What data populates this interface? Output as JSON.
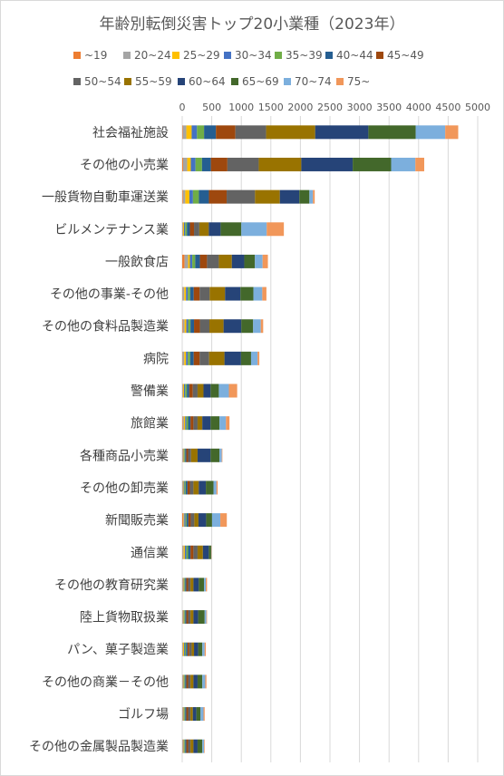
{
  "chart_data": {
    "type": "bar",
    "orientation": "horizontal",
    "stacked": true,
    "title": "年齢別転倒災害トップ20小業種（2023年）",
    "xlabel": "",
    "ylabel": "",
    "xlim": [
      0,
      5000
    ],
    "xticks": [
      "0",
      "500",
      "1000",
      "1500",
      "2000",
      "2500",
      "3000",
      "3500",
      "4000",
      "4500",
      "5000"
    ],
    "grid": true,
    "legend_position": "top",
    "categories": [
      "社会福祉施設",
      "その他の小売業",
      "一般貨物自動車運送業",
      "ビルメンテナンス業",
      "一般飲食店",
      "その他の事業-その他",
      "その他の食料品製造業",
      "病院",
      "警備業",
      "旅館業",
      "各種商品小売業",
      "その他の卸売業",
      "新聞販売業",
      "通信業",
      "その他の教育研究業",
      "陸上貨物取扱業",
      "パン、菓子製造業",
      "その他の商業－その他",
      "ゴルフ場",
      "その他の金属製品製造業"
    ],
    "series": [
      {
        "name": "~19",
        "color": "#ED7D31",
        "values": [
          10,
          15,
          12,
          5,
          40,
          5,
          10,
          5,
          5,
          10,
          5,
          5,
          15,
          5,
          5,
          5,
          5,
          5,
          5,
          5
        ]
      },
      {
        "name": "20~24",
        "color": "#A5A5A5",
        "values": [
          60,
          70,
          40,
          10,
          60,
          30,
          30,
          30,
          10,
          20,
          10,
          10,
          10,
          20,
          10,
          10,
          10,
          10,
          10,
          10
        ]
      },
      {
        "name": "25~29",
        "color": "#FFC000",
        "values": [
          90,
          60,
          70,
          15,
          30,
          30,
          30,
          30,
          15,
          20,
          10,
          10,
          10,
          20,
          10,
          10,
          15,
          10,
          10,
          10
        ]
      },
      {
        "name": "30~34",
        "color": "#4472C4",
        "values": [
          90,
          80,
          60,
          20,
          40,
          30,
          30,
          30,
          20,
          20,
          10,
          15,
          20,
          25,
          10,
          10,
          15,
          10,
          10,
          10
        ]
      },
      {
        "name": "35~39",
        "color": "#70AD47",
        "values": [
          120,
          110,
          100,
          30,
          50,
          40,
          40,
          40,
          30,
          30,
          15,
          20,
          20,
          30,
          15,
          15,
          20,
          15,
          15,
          15
        ]
      },
      {
        "name": "40~44",
        "color": "#255E91",
        "values": [
          200,
          150,
          170,
          50,
          80,
          60,
          60,
          60,
          40,
          40,
          20,
          30,
          30,
          40,
          20,
          20,
          25,
          20,
          20,
          20
        ]
      },
      {
        "name": "45~49",
        "color": "#9E480E",
        "values": [
          330,
          280,
          300,
          70,
          120,
          100,
          100,
          100,
          60,
          50,
          30,
          40,
          40,
          50,
          30,
          30,
          30,
          30,
          30,
          30
        ]
      },
      {
        "name": "50~54",
        "color": "#636363",
        "values": [
          520,
          530,
          480,
          90,
          200,
          170,
          160,
          160,
          80,
          70,
          50,
          60,
          60,
          70,
          40,
          40,
          40,
          40,
          40,
          40
        ]
      },
      {
        "name": "55~59",
        "color": "#997300",
        "values": [
          830,
          720,
          420,
          160,
          220,
          260,
          240,
          260,
          100,
          80,
          110,
          90,
          70,
          90,
          50,
          50,
          40,
          50,
          40,
          50
        ]
      },
      {
        "name": "60~64",
        "color": "#264478",
        "values": [
          900,
          870,
          330,
          200,
          210,
          260,
          300,
          280,
          120,
          140,
          220,
          120,
          130,
          100,
          90,
          80,
          70,
          70,
          60,
          70
        ]
      },
      {
        "name": "65~69",
        "color": "#43682B",
        "values": [
          800,
          650,
          170,
          350,
          180,
          220,
          200,
          170,
          140,
          150,
          150,
          130,
          100,
          40,
          90,
          110,
          70,
          80,
          70,
          80
        ]
      },
      {
        "name": "70~74",
        "color": "#7CAFDD",
        "values": [
          500,
          410,
          60,
          430,
          130,
          150,
          130,
          110,
          170,
          110,
          40,
          50,
          140,
          5,
          30,
          30,
          40,
          50,
          50,
          30
        ]
      },
      {
        "name": "75~",
        "color": "#F1975A",
        "values": [
          220,
          150,
          30,
          290,
          90,
          70,
          40,
          30,
          140,
          60,
          10,
          20,
          110,
          5,
          20,
          10,
          20,
          20,
          20,
          10
        ]
      }
    ]
  }
}
